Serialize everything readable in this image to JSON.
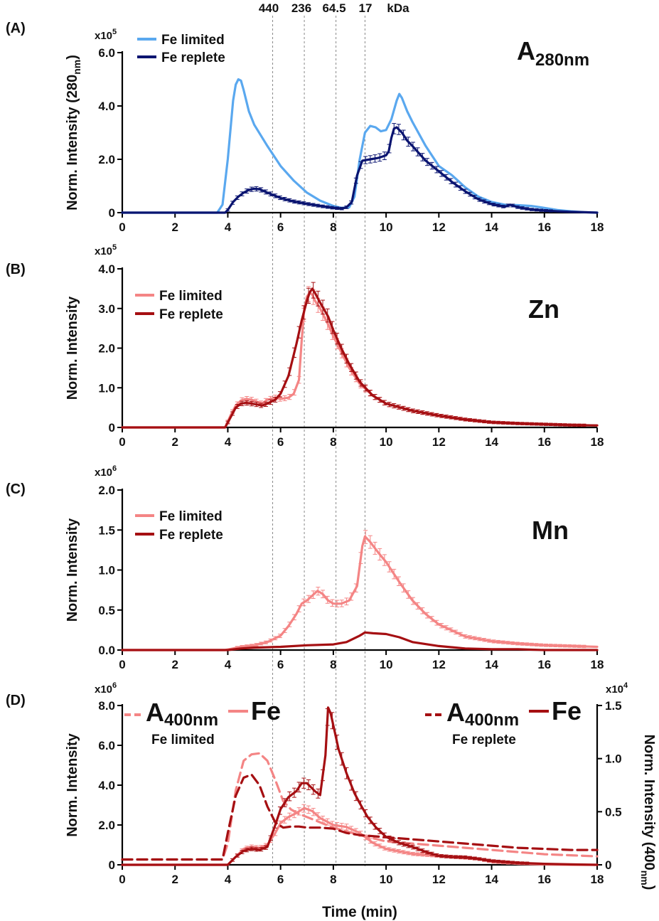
{
  "figure": {
    "xlabel": "Time (min)",
    "kda_markers": {
      "times": [
        5.7,
        6.9,
        8.1,
        9.2
      ],
      "labels": [
        "440",
        "236",
        "64.5",
        "17"
      ],
      "unit": "kDa"
    }
  },
  "colors": {
    "light_blue": "#5aa8ef",
    "navy": "#0a1470",
    "salmon": "#f48585",
    "dark_red": "#a50f12",
    "dashed_line": "#888888"
  },
  "chart_data": [
    {
      "type": "line",
      "panel_label": "(A)",
      "ylabel": "Norm. Intensity (280",
      "ylabel_sub": "nm",
      "ylabel_close": ")",
      "y_exponent_base": "x10",
      "y_exponent_power": "5",
      "corner_label": "A",
      "corner_label_sub": "280nm",
      "xlim": [
        0,
        18
      ],
      "ylim": [
        0,
        6.0
      ],
      "xticks": [
        0,
        2,
        4,
        6,
        8,
        10,
        12,
        14,
        16,
        18
      ],
      "yticks": [
        0,
        2.0,
        4.0,
        6.0
      ],
      "ytick_labels": [
        "0",
        "2.0",
        "4.0",
        "6.0"
      ],
      "legend": [
        "Fe limited",
        "Fe replete"
      ],
      "series": [
        {
          "name": "Fe limited",
          "color": "light_blue",
          "dashed": false,
          "errorbars": false,
          "x": [
            0,
            3.6,
            3.8,
            4.0,
            4.2,
            4.3,
            4.4,
            4.5,
            4.6,
            4.8,
            5.0,
            5.5,
            6.0,
            6.5,
            7.0,
            7.5,
            8.0,
            8.3,
            8.6,
            8.8,
            9.0,
            9.2,
            9.4,
            9.6,
            9.8,
            10.0,
            10.2,
            10.4,
            10.5,
            10.6,
            10.8,
            11.0,
            11.5,
            12.0,
            12.5,
            13.0,
            13.5,
            14.0,
            14.5,
            15.0,
            15.5,
            16.0,
            16.5,
            17.0,
            17.5,
            18.0
          ],
          "y": [
            0,
            0,
            0.3,
            2.0,
            4.2,
            4.8,
            5.0,
            4.95,
            4.6,
            3.8,
            3.3,
            2.5,
            1.75,
            1.2,
            0.75,
            0.45,
            0.25,
            0.18,
            0.2,
            0.6,
            2.0,
            3.0,
            3.25,
            3.2,
            3.05,
            3.1,
            3.5,
            4.2,
            4.45,
            4.3,
            3.8,
            3.4,
            2.5,
            1.75,
            1.4,
            0.95,
            0.6,
            0.4,
            0.3,
            0.28,
            0.25,
            0.18,
            0.1,
            0.05,
            0.02,
            0.0
          ]
        },
        {
          "name": "Fe replete",
          "color": "navy",
          "dashed": false,
          "errorbars": true,
          "x": [
            0,
            3.9,
            4.0,
            4.2,
            4.4,
            4.6,
            4.8,
            5.0,
            5.2,
            5.5,
            6.0,
            6.5,
            7.0,
            7.5,
            8.0,
            8.3,
            8.5,
            8.7,
            8.9,
            9.1,
            9.4,
            9.7,
            10.0,
            10.1,
            10.2,
            10.3,
            10.4,
            10.6,
            10.8,
            11.0,
            11.5,
            12.0,
            12.5,
            13.0,
            13.5,
            14.0,
            14.5,
            14.7,
            15.0,
            15.5,
            16.0,
            16.5,
            17.0,
            17.5,
            18.0
          ],
          "y": [
            0,
            0,
            0.1,
            0.4,
            0.6,
            0.75,
            0.85,
            0.9,
            0.88,
            0.75,
            0.55,
            0.42,
            0.33,
            0.25,
            0.18,
            0.15,
            0.2,
            0.4,
            1.4,
            1.95,
            2.0,
            2.05,
            2.15,
            2.3,
            2.8,
            3.15,
            3.2,
            3.0,
            2.7,
            2.5,
            1.95,
            1.55,
            1.15,
            0.8,
            0.5,
            0.32,
            0.22,
            0.3,
            0.2,
            0.12,
            0.08,
            0.05,
            0.03,
            0.02,
            0.0
          ]
        }
      ]
    },
    {
      "type": "line",
      "panel_label": "(B)",
      "ylabel": "Norm. Intensity",
      "y_exponent_base": "x10",
      "y_exponent_power": "5",
      "corner_label": "Zn",
      "xlim": [
        0,
        18
      ],
      "ylim": [
        0,
        4.0
      ],
      "xticks": [
        0,
        2,
        4,
        6,
        8,
        10,
        12,
        14,
        16,
        18
      ],
      "yticks": [
        0,
        1.0,
        2.0,
        3.0,
        4.0
      ],
      "ytick_labels": [
        "0",
        "1.0",
        "2.0",
        "3.0",
        "4.0"
      ],
      "legend": [
        "Fe limited",
        "Fe replete"
      ],
      "series": [
        {
          "name": "Fe limited",
          "color": "salmon",
          "dashed": false,
          "errorbars": true,
          "x": [
            0,
            3.9,
            4.1,
            4.3,
            4.5,
            4.7,
            4.9,
            5.1,
            5.3,
            5.5,
            5.8,
            6.0,
            6.3,
            6.5,
            6.7,
            6.8,
            6.9,
            7.0,
            7.1,
            7.2,
            7.3,
            7.5,
            7.8,
            8.0,
            8.3,
            8.6,
            9.0,
            9.5,
            10.0,
            11.0,
            12.0,
            13.0,
            14.0,
            15.0,
            16.0,
            17.0,
            18.0
          ],
          "y": [
            0,
            0,
            0.3,
            0.55,
            0.68,
            0.72,
            0.7,
            0.65,
            0.6,
            0.7,
            0.75,
            0.72,
            0.75,
            0.85,
            1.2,
            2.2,
            3.0,
            3.3,
            3.4,
            3.35,
            3.2,
            3.0,
            2.6,
            2.3,
            1.9,
            1.5,
            1.1,
            0.8,
            0.6,
            0.42,
            0.3,
            0.2,
            0.13,
            0.1,
            0.08,
            0.06,
            0.05
          ]
        },
        {
          "name": "Fe replete",
          "color": "dark_red",
          "dashed": false,
          "errorbars": true,
          "x": [
            0,
            3.9,
            4.1,
            4.3,
            4.5,
            4.7,
            4.9,
            5.1,
            5.3,
            5.5,
            5.8,
            6.0,
            6.3,
            6.6,
            6.8,
            7.0,
            7.1,
            7.2,
            7.3,
            7.5,
            7.8,
            8.0,
            8.3,
            8.6,
            9.0,
            9.5,
            10.0,
            11.0,
            12.0,
            13.0,
            14.0,
            15.0,
            16.0,
            17.0,
            18.0
          ],
          "y": [
            0,
            0,
            0.25,
            0.5,
            0.6,
            0.62,
            0.6,
            0.58,
            0.55,
            0.6,
            0.7,
            0.85,
            1.3,
            2.1,
            2.7,
            3.2,
            3.4,
            3.5,
            3.4,
            3.15,
            2.8,
            2.45,
            2.0,
            1.6,
            1.15,
            0.8,
            0.6,
            0.42,
            0.3,
            0.2,
            0.13,
            0.1,
            0.08,
            0.06,
            0.05
          ]
        }
      ]
    },
    {
      "type": "line",
      "panel_label": "(C)",
      "ylabel": "Norm. Intensity",
      "y_exponent_base": "x10",
      "y_exponent_power": "6",
      "corner_label": "Mn",
      "xlim": [
        0,
        18
      ],
      "ylim": [
        0,
        2.0
      ],
      "xticks": [
        0,
        2,
        4,
        6,
        8,
        10,
        12,
        14,
        16,
        18
      ],
      "yticks": [
        0,
        0.5,
        1.0,
        1.5,
        2.0
      ],
      "ytick_labels": [
        "0.0",
        "0.5",
        "1.0",
        "1.5",
        "2.0"
      ],
      "legend": [
        "Fe limited",
        "Fe replete"
      ],
      "series": [
        {
          "name": "Fe limited",
          "color": "salmon",
          "dashed": false,
          "errorbars": true,
          "x": [
            0,
            3.9,
            4.2,
            4.5,
            5.0,
            5.5,
            6.0,
            6.3,
            6.6,
            6.8,
            7.0,
            7.2,
            7.4,
            7.6,
            7.8,
            8.0,
            8.3,
            8.6,
            8.9,
            9.1,
            9.2,
            9.4,
            9.7,
            10.0,
            10.5,
            11.0,
            11.5,
            12.0,
            13.0,
            14.0,
            15.0,
            16.0,
            17.0,
            18.0
          ],
          "y": [
            0,
            0,
            0.02,
            0.04,
            0.06,
            0.1,
            0.18,
            0.3,
            0.45,
            0.58,
            0.62,
            0.68,
            0.74,
            0.7,
            0.62,
            0.58,
            0.58,
            0.62,
            0.8,
            1.3,
            1.42,
            1.35,
            1.22,
            1.1,
            0.85,
            0.62,
            0.45,
            0.32,
            0.17,
            0.11,
            0.08,
            0.06,
            0.05,
            0.04
          ]
        },
        {
          "name": "Fe replete",
          "color": "dark_red",
          "dashed": false,
          "errorbars": false,
          "x": [
            0,
            4.0,
            4.5,
            5.0,
            6.0,
            7.0,
            8.0,
            8.5,
            9.0,
            9.2,
            9.5,
            10.0,
            10.5,
            11.0,
            12.0,
            13.0,
            14.0,
            15.0,
            16.0,
            17.0,
            18.0
          ],
          "y": [
            0,
            0,
            0.02,
            0.03,
            0.04,
            0.06,
            0.07,
            0.1,
            0.18,
            0.22,
            0.21,
            0.2,
            0.16,
            0.1,
            0.05,
            0.02,
            0.01,
            0.01,
            0.0,
            0.0,
            0.0
          ]
        }
      ]
    },
    {
      "type": "line",
      "panel_label": "(D)",
      "ylabel": "Norm. Intensity",
      "y_exponent_base": "x10",
      "y_exponent_power": "6",
      "y2label": "Norm. Intensity (400",
      "y2label_sub": "nm",
      "y2label_close": ")",
      "y2_exponent_base": "x10",
      "y2_exponent_power": "4",
      "xlabel": "Time (min)",
      "xlim": [
        0,
        18
      ],
      "ylim": [
        0,
        8.0
      ],
      "y2lim": [
        0,
        1.5
      ],
      "xticks": [
        0,
        2,
        4,
        6,
        8,
        10,
        12,
        14,
        16,
        18
      ],
      "yticks": [
        0,
        2.0,
        4.0,
        6.0,
        8.0
      ],
      "ytick_labels": [
        "0",
        "2.0",
        "4.0",
        "6.0",
        "8.0"
      ],
      "y2ticks": [
        0,
        0.5,
        1.0,
        1.5
      ],
      "y2tick_labels": [
        "0",
        "0.5",
        "1.0",
        "1.5"
      ],
      "legend_left": {
        "a_main": "A",
        "a_sub": "400nm",
        "fe": "Fe",
        "caption": "Fe limited"
      },
      "legend_right": {
        "a_main": "A",
        "a_sub": "400nm",
        "fe": "Fe",
        "caption": "Fe replete"
      },
      "series": [
        {
          "name": "A400nm Fe limited",
          "axis": "y2",
          "color": "salmon",
          "dashed": true,
          "errorbars": false,
          "x": [
            0,
            3.8,
            4.0,
            4.3,
            4.6,
            4.9,
            5.2,
            5.5,
            5.8,
            6.1,
            6.4,
            6.7,
            7.0,
            7.5,
            8.0,
            9.0,
            10.0,
            11.0,
            12.0,
            13.0,
            14.0,
            15.0,
            16.0,
            17.0,
            18.0
          ],
          "y": [
            0.05,
            0.05,
            0.2,
            0.7,
            0.98,
            1.04,
            1.05,
            0.98,
            0.8,
            0.6,
            0.52,
            0.48,
            0.45,
            0.4,
            0.35,
            0.28,
            0.22,
            0.2,
            0.18,
            0.16,
            0.14,
            0.12,
            0.1,
            0.09,
            0.08
          ]
        },
        {
          "name": "Fe limited",
          "axis": "y1",
          "color": "salmon",
          "dashed": false,
          "errorbars": true,
          "x": [
            0,
            4.0,
            4.3,
            4.6,
            4.9,
            5.2,
            5.5,
            5.8,
            6.0,
            6.3,
            6.6,
            6.9,
            7.2,
            7.5,
            8.0,
            8.5,
            9.0,
            9.5,
            10.0,
            11.0,
            12.0,
            13.0,
            13.5,
            14.0,
            15.0,
            16.0,
            17.0,
            18.0
          ],
          "y": [
            0,
            0,
            0.4,
            0.8,
            0.9,
            0.85,
            1.0,
            1.6,
            2.1,
            2.4,
            2.6,
            2.85,
            2.7,
            2.35,
            2.0,
            1.9,
            1.6,
            1.1,
            0.8,
            0.55,
            0.45,
            0.35,
            0.3,
            0.15,
            0.05,
            0.02,
            0.0,
            0.0
          ]
        },
        {
          "name": "A400nm Fe replete",
          "axis": "y2",
          "color": "dark_red",
          "dashed": true,
          "errorbars": false,
          "x": [
            0,
            3.8,
            4.0,
            4.3,
            4.6,
            4.9,
            5.2,
            5.5,
            5.8,
            6.1,
            6.4,
            6.7,
            7.0,
            7.5,
            8.0,
            8.5,
            9.0,
            10.0,
            11.0,
            12.0,
            13.0,
            14.0,
            15.0,
            16.0,
            17.0,
            18.0
          ],
          "y": [
            0.05,
            0.05,
            0.3,
            0.65,
            0.82,
            0.85,
            0.75,
            0.55,
            0.4,
            0.35,
            0.36,
            0.36,
            0.35,
            0.35,
            0.34,
            0.3,
            0.28,
            0.26,
            0.24,
            0.22,
            0.2,
            0.18,
            0.16,
            0.15,
            0.14,
            0.14
          ]
        },
        {
          "name": "Fe replete",
          "axis": "y1",
          "color": "dark_red",
          "dashed": false,
          "errorbars": true,
          "x": [
            0,
            4.0,
            4.3,
            4.6,
            4.9,
            5.2,
            5.5,
            5.8,
            6.0,
            6.3,
            6.6,
            6.8,
            7.0,
            7.3,
            7.5,
            7.7,
            7.8,
            7.9,
            8.0,
            8.2,
            8.5,
            8.8,
            9.0,
            9.3,
            9.6,
            10.0,
            10.5,
            11.0,
            11.5,
            12.0,
            12.5,
            13.0,
            13.5,
            14.0,
            15.0,
            16.0,
            17.0,
            18.0
          ],
          "y": [
            0,
            0,
            0.4,
            0.7,
            0.8,
            0.75,
            0.9,
            2.0,
            2.8,
            3.4,
            3.7,
            4.1,
            4.1,
            3.7,
            3.5,
            5.5,
            7.9,
            7.6,
            7.0,
            5.8,
            4.6,
            3.6,
            3.1,
            2.4,
            1.9,
            1.4,
            1.1,
            0.9,
            0.65,
            0.45,
            0.4,
            0.38,
            0.3,
            0.2,
            0.1,
            0.05,
            0.02,
            0.0
          ]
        }
      ]
    }
  ]
}
